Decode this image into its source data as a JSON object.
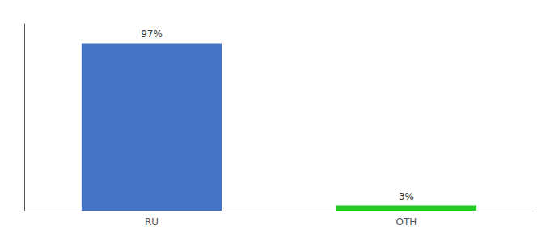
{
  "chart_data": {
    "type": "bar",
    "categories": [
      "RU",
      "OTH"
    ],
    "values": [
      97,
      3
    ],
    "value_labels": [
      "97%",
      "3%"
    ],
    "colors": [
      "#4472c4",
      "#22cc22"
    ],
    "ylim": [
      0,
      108
    ],
    "yticks": [],
    "grid": false,
    "data_labels": true,
    "tick_labels": "x"
  }
}
